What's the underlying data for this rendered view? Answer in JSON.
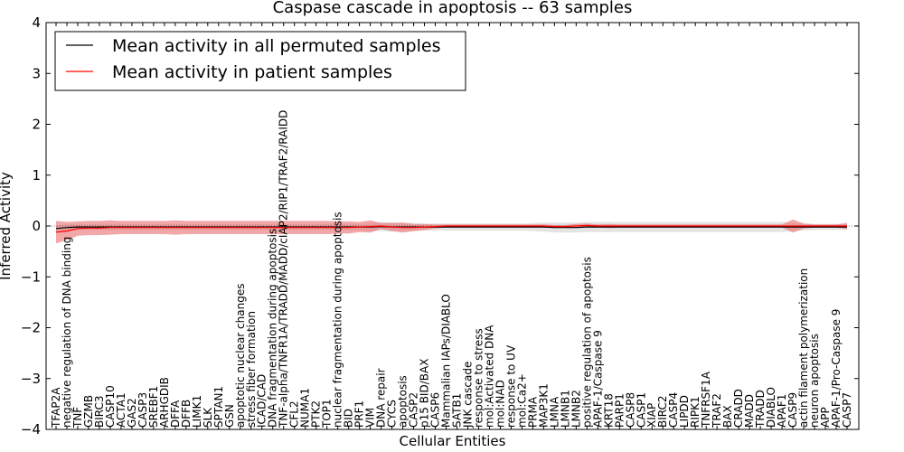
{
  "chart_data": {
    "type": "line",
    "title": "Caspase cascade in apoptosis -- 63 samples",
    "xlabel": "Cellular Entities",
    "ylabel": "Inferred Activity",
    "ylim": [
      -4,
      4
    ],
    "yticks": [
      -4,
      -3,
      -2,
      -1,
      0,
      1,
      2,
      3,
      4
    ],
    "legend_position": "top-left",
    "categories": [
      "TFAP2A",
      "negative regulation of DNA binding",
      "TNF",
      "GZMB",
      "BIRC3",
      "CASP10",
      "ACTA1",
      "GAS2",
      "CASP3",
      "SREBF1",
      "ARHGDIB",
      "DFFA",
      "DFFB",
      "LIMK1",
      "SLK",
      "SPTAN1",
      "GSN",
      "apoptotic nuclear changes",
      "stress fiber formation",
      "ICAD/CAD",
      "DNA fragmentation during apoptosis",
      "TNF-alpha/TNFR1A/TRADD/MADD/cIAP2/RIP1/TRAF2/RAIDD",
      "CFL2",
      "NUMA1",
      "PTK2",
      "TOP1",
      "nuclear fragmentation during apoptosis",
      "BID",
      "PRF1",
      "VIM",
      "DNA repair",
      "CYCS",
      "apoptosis",
      "CASP2",
      "p15 BID/BAX",
      "CASP6",
      "Mammalian IAPs/DIABLO",
      "SATB1",
      "JNK cascade",
      "response to stress",
      "mol:Activated DNA",
      "mol:NAD",
      "response to UV",
      "mol:Ca2+",
      "PRMA",
      "MAP3K1",
      "LMNA",
      "LMNB1",
      "LMNB2",
      "positive regulation of apoptosis",
      "APAF-1/Caspase 9",
      "KRT18",
      "PARP1",
      "CASP8",
      "CASP1",
      "XIAP",
      "BIRC2",
      "CASP4",
      "LIPDD",
      "RIPK1",
      "TNFRSF1A",
      "TRAF2",
      "BAX",
      "CRADD",
      "MADD",
      "TRADD",
      "DIABLO",
      "APAF1",
      "CASP9",
      "actin filament polymerization",
      "neuron apoptosis",
      "APP",
      "APAF-1/Pro-Caspase 9",
      "CASP7"
    ],
    "series": [
      {
        "name": "Mean activity in all permuted samples",
        "color": "#000000",
        "values": [
          -0.05,
          -0.03,
          -0.02,
          -0.02,
          -0.02,
          -0.02,
          -0.02,
          -0.02,
          -0.02,
          -0.02,
          -0.02,
          -0.02,
          -0.02,
          -0.02,
          -0.02,
          -0.02,
          -0.02,
          -0.02,
          -0.02,
          -0.02,
          -0.02,
          -0.02,
          -0.02,
          -0.02,
          -0.02,
          -0.02,
          -0.02,
          -0.02,
          -0.02,
          -0.02,
          -0.01,
          -0.02,
          -0.02,
          -0.02,
          -0.02,
          -0.02,
          -0.02,
          -0.02,
          -0.02,
          -0.02,
          -0.02,
          -0.02,
          -0.02,
          -0.02,
          -0.02,
          -0.02,
          -0.03,
          -0.03,
          -0.03,
          -0.02,
          -0.02,
          -0.02,
          -0.02,
          -0.02,
          -0.02,
          -0.02,
          -0.02,
          -0.02,
          -0.02,
          -0.02,
          -0.02,
          -0.02,
          -0.02,
          -0.02,
          -0.02,
          -0.02,
          -0.02,
          -0.02,
          -0.02,
          -0.02,
          -0.02,
          -0.02,
          -0.02,
          -0.02
        ],
        "band": [
          0.06,
          0.06,
          0.06,
          0.06,
          0.06,
          0.06,
          0.06,
          0.06,
          0.06,
          0.06,
          0.06,
          0.06,
          0.06,
          0.06,
          0.06,
          0.06,
          0.06,
          0.06,
          0.06,
          0.06,
          0.06,
          0.06,
          0.06,
          0.06,
          0.06,
          0.06,
          0.06,
          0.06,
          0.06,
          0.08,
          0.09,
          0.09,
          0.08,
          0.08,
          0.07,
          0.07,
          0.07,
          0.07,
          0.07,
          0.07,
          0.07,
          0.07,
          0.07,
          0.07,
          0.08,
          0.09,
          0.1,
          0.1,
          0.1,
          0.1,
          0.1,
          0.1,
          0.1,
          0.1,
          0.1,
          0.1,
          0.1,
          0.1,
          0.1,
          0.1,
          0.1,
          0.1,
          0.1,
          0.1,
          0.1,
          0.1,
          0.1,
          0.1,
          0.08,
          0.07,
          0.06,
          0.06,
          0.06,
          0.06
        ]
      },
      {
        "name": "Mean activity in patient samples",
        "color": "#ff0000",
        "values": [
          -0.12,
          -0.1,
          -0.05,
          -0.04,
          -0.04,
          -0.03,
          -0.03,
          -0.03,
          -0.03,
          -0.03,
          -0.03,
          -0.03,
          -0.03,
          -0.03,
          -0.03,
          -0.03,
          -0.03,
          -0.03,
          -0.03,
          -0.03,
          -0.03,
          -0.03,
          -0.03,
          -0.03,
          -0.03,
          -0.03,
          -0.03,
          -0.03,
          -0.02,
          -0.01,
          0.0,
          -0.02,
          -0.03,
          -0.03,
          -0.02,
          -0.01,
          0.0,
          0.0,
          0.0,
          0.0,
          0.0,
          0.0,
          0.0,
          0.0,
          0.0,
          0.0,
          -0.01,
          -0.01,
          0.0,
          0.01,
          0.0,
          0.0,
          0.0,
          0.0,
          0.0,
          0.0,
          0.0,
          0.0,
          0.0,
          0.0,
          0.0,
          0.0,
          0.0,
          0.0,
          0.0,
          0.0,
          0.0,
          0.0,
          0.0,
          0.0,
          0.0,
          0.0,
          0.0,
          0.0
        ],
        "band": [
          0.22,
          0.18,
          0.14,
          0.14,
          0.14,
          0.14,
          0.13,
          0.13,
          0.13,
          0.13,
          0.13,
          0.14,
          0.13,
          0.13,
          0.13,
          0.13,
          0.13,
          0.13,
          0.13,
          0.13,
          0.13,
          0.13,
          0.13,
          0.13,
          0.13,
          0.13,
          0.12,
          0.12,
          0.1,
          0.12,
          0.06,
          0.08,
          0.1,
          0.07,
          0.06,
          0.04,
          0.03,
          0.03,
          0.03,
          0.03,
          0.03,
          0.03,
          0.03,
          0.03,
          0.03,
          0.03,
          0.03,
          0.03,
          0.04,
          0.04,
          0.03,
          0.04,
          0.03,
          0.03,
          0.03,
          0.03,
          0.03,
          0.03,
          0.03,
          0.03,
          0.03,
          0.03,
          0.03,
          0.03,
          0.03,
          0.03,
          0.03,
          0.03,
          0.13,
          0.05,
          0.03,
          0.03,
          0.03,
          0.06
        ]
      }
    ]
  }
}
